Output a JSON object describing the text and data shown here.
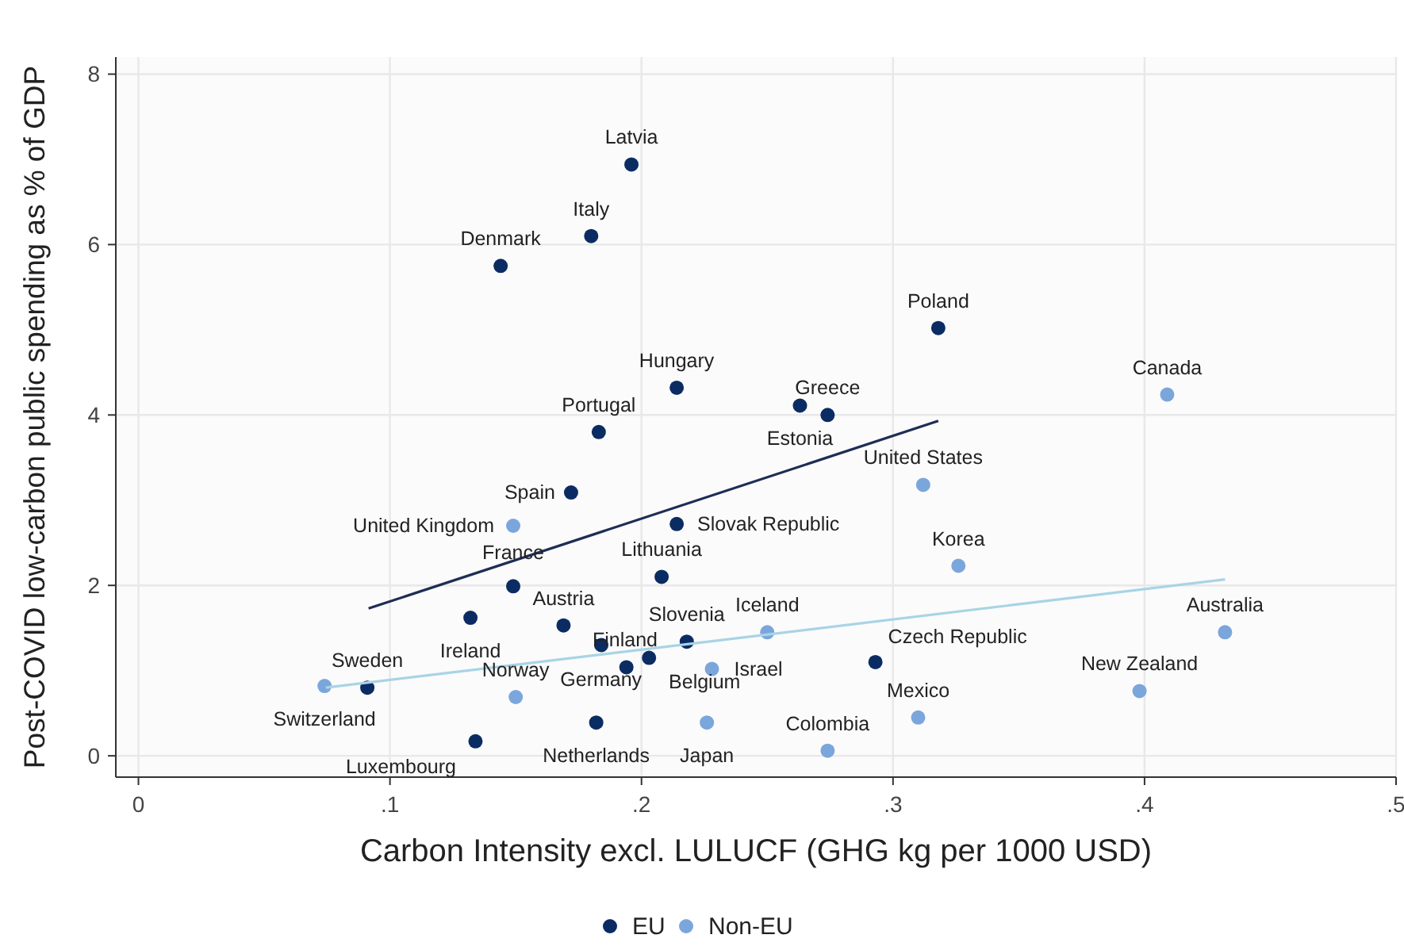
{
  "chart_data": {
    "type": "scatter",
    "xlabel": "Carbon Intensity excl. LULUCF (GHG kg per 1000 USD)",
    "ylabel": "Post-COVID low-carbon public spending as % of GDP",
    "xlim": [
      -0.009,
      0.5
    ],
    "xticks": [
      0,
      {
        "value": 0.1,
        "label": ".1"
      },
      {
        "value": 0.2,
        "label": ".2"
      },
      {
        "value": 0.3,
        "label": ".3"
      },
      {
        "value": 0.4,
        "label": ".4"
      },
      {
        "value": 0.5,
        "label": ".5"
      }
    ],
    "ylim": [
      -0.25,
      8.2
    ],
    "yticks": [
      0,
      2,
      4,
      6,
      8
    ],
    "grid": true,
    "legend": "bottom",
    "marker": "circle",
    "series": [
      {
        "name": "EU",
        "color": "#0b2c62",
        "x": [
          0.196,
          0.18,
          0.144,
          0.318,
          0.214,
          0.274,
          0.263,
          0.183,
          0.172,
          0.214,
          0.208,
          0.149,
          0.132,
          0.169,
          0.184,
          0.218,
          0.194,
          0.203,
          0.293,
          0.182,
          0.134,
          0.091
        ],
        "values": [
          6.94,
          6.1,
          5.75,
          5.02,
          4.32,
          4.0,
          4.11,
          3.8,
          3.09,
          2.72,
          2.1,
          1.99,
          1.62,
          1.53,
          1.3,
          1.34,
          1.04,
          1.15,
          1.1,
          0.39,
          0.17,
          0.8
        ]
      },
      {
        "name": "Non-EU",
        "color": "#7ba6dc",
        "x": [
          0.409,
          0.312,
          0.326,
          0.149,
          0.25,
          0.432,
          0.398,
          0.31,
          0.274,
          0.226,
          0.228,
          0.15,
          0.074
        ],
        "values": [
          4.24,
          3.18,
          2.23,
          2.7,
          1.45,
          1.45,
          0.76,
          0.45,
          0.06,
          0.39,
          1.02,
          0.69,
          0.82
        ]
      },
      {
        "type": "line",
        "marker": "none",
        "color": "#1f2d55",
        "x": [
          0.0915,
          0.318
        ],
        "values": [
          1.73,
          3.93
        ]
      },
      {
        "type": "line",
        "marker": "none",
        "color": "#a8d4e6",
        "x": [
          0.0745,
          0.432
        ],
        "values": [
          0.8,
          2.07
        ]
      }
    ],
    "annotations": [
      {
        "text": "Latvia",
        "x": 0.196,
        "y": 6.94
      },
      {
        "text": "Italy",
        "x": 0.18,
        "y": 6.1
      },
      {
        "text": "Denmark",
        "x": 0.144,
        "y": 5.75
      },
      {
        "text": "Poland",
        "x": 0.318,
        "y": 5.02
      },
      {
        "text": "Hungary",
        "x": 0.214,
        "y": 4.32
      },
      {
        "text": "Greece",
        "x": 0.274,
        "y": 4.0
      },
      {
        "text": "Estonia",
        "x": 0.263,
        "y": 4.11
      },
      {
        "text": "Portugal",
        "x": 0.183,
        "y": 3.8
      },
      {
        "text": "Spain",
        "x": 0.172,
        "y": 3.09
      },
      {
        "text": "Slovak Republic",
        "x": 0.214,
        "y": 2.72
      },
      {
        "text": "Lithuania",
        "x": 0.208,
        "y": 2.1
      },
      {
        "text": "France",
        "x": 0.149,
        "y": 1.99
      },
      {
        "text": "Ireland",
        "x": 0.132,
        "y": 1.62
      },
      {
        "text": "Austria",
        "x": 0.169,
        "y": 1.53
      },
      {
        "text": "Finland",
        "x": 0.184,
        "y": 1.3
      },
      {
        "text": "Slovenia",
        "x": 0.218,
        "y": 1.34
      },
      {
        "text": "Germany",
        "x": 0.194,
        "y": 1.04
      },
      {
        "text": "Belgium",
        "x": 0.203,
        "y": 1.15
      },
      {
        "text": "Czech Republic",
        "x": 0.293,
        "y": 1.1
      },
      {
        "text": "Netherlands",
        "x": 0.182,
        "y": 0.39
      },
      {
        "text": "Luxembourg",
        "x": 0.134,
        "y": 0.17
      },
      {
        "text": "Sweden",
        "x": 0.091,
        "y": 0.8
      },
      {
        "text": "Canada",
        "x": 0.409,
        "y": 4.24
      },
      {
        "text": "United States",
        "x": 0.312,
        "y": 3.18
      },
      {
        "text": "Korea",
        "x": 0.326,
        "y": 2.23
      },
      {
        "text": "United Kingdom",
        "x": 0.149,
        "y": 2.7
      },
      {
        "text": "Iceland",
        "x": 0.25,
        "y": 1.45
      },
      {
        "text": "Australia",
        "x": 0.432,
        "y": 1.45
      },
      {
        "text": "New Zealand",
        "x": 0.398,
        "y": 0.76
      },
      {
        "text": "Mexico",
        "x": 0.31,
        "y": 0.45
      },
      {
        "text": "Colombia",
        "x": 0.274,
        "y": 0.06
      },
      {
        "text": "Japan",
        "x": 0.226,
        "y": 0.39
      },
      {
        "text": "Israel",
        "x": 0.228,
        "y": 1.02
      },
      {
        "text": "Norway",
        "x": 0.15,
        "y": 0.69
      },
      {
        "text": "Switzerland",
        "x": 0.074,
        "y": 0.82
      }
    ]
  }
}
